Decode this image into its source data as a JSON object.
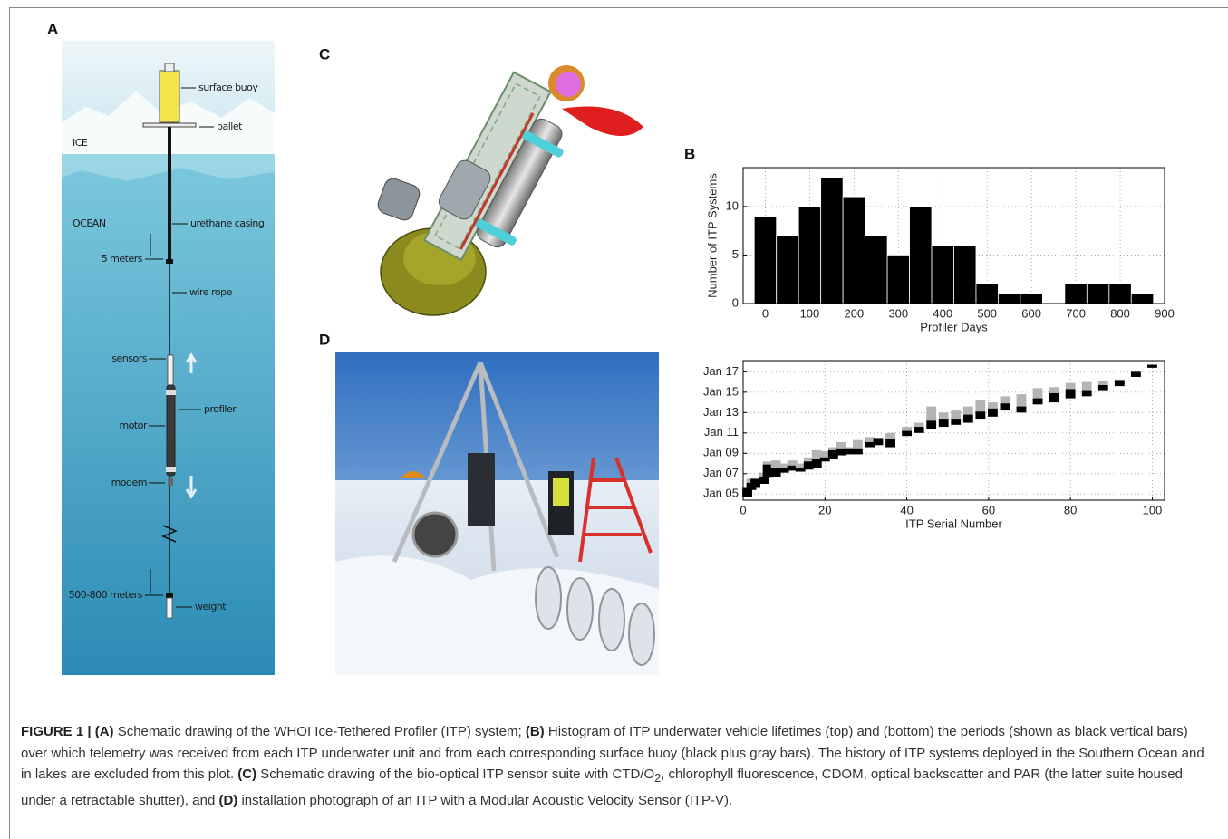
{
  "panel_labels": [
    "A",
    "B",
    "C",
    "D"
  ],
  "schematic_labels": [
    "surface buoy",
    "pallet",
    "ICE",
    "OCEAN",
    "urethane casing",
    "5 meters",
    "wire rope",
    "sensors",
    "profiler",
    "motor",
    "modem",
    "500-800 meters",
    "weight"
  ],
  "chart_data": [
    {
      "type": "histogram",
      "xlabel": "Profiler Days",
      "ylabel": "Number of ITP Systems",
      "bins": [
        -25,
        25,
        75,
        125,
        175,
        225,
        275,
        325,
        375,
        425,
        475,
        525,
        575,
        625,
        675,
        725,
        775,
        825,
        875
      ],
      "values": [
        9,
        7,
        10,
        13,
        11,
        7,
        5,
        10,
        6,
        6,
        2,
        1,
        1,
        0,
        2,
        2,
        2,
        1
      ],
      "color": "#000000",
      "xlim": [
        -50,
        900
      ],
      "xticks": [
        0,
        100,
        200,
        300,
        400,
        500,
        600,
        700,
        800,
        900
      ],
      "ylim": [
        0,
        14
      ],
      "yticks": [
        0,
        5,
        10
      ],
      "grid": true
    },
    {
      "type": "range",
      "xlabel": "ITP Serial Number",
      "x": [
        1,
        2,
        3,
        5,
        6,
        8,
        10,
        12,
        14,
        16,
        18,
        20,
        22,
        24,
        26,
        28,
        31,
        33,
        36,
        40,
        43,
        46,
        49,
        52,
        55,
        58,
        61,
        64,
        68,
        72,
        76,
        80,
        84,
        88,
        92,
        96,
        100
      ],
      "start": [
        2004.7,
        2005.4,
        2005.6,
        2006.0,
        2006.6,
        2006.7,
        2007.1,
        2007.3,
        2007.2,
        2007.4,
        2007.6,
        2008.2,
        2008.4,
        2008.8,
        2008.9,
        2008.9,
        2009.6,
        2009.8,
        2009.6,
        2010.7,
        2011.0,
        2011.4,
        2011.6,
        2011.8,
        2012.0,
        2012.4,
        2012.6,
        2013.2,
        2013.0,
        2013.8,
        2014.0,
        2014.4,
        2014.6,
        2015.2,
        2015.6,
        2016.5,
        2017.4
      ],
      "end": [
        2005.6,
        2006.1,
        2006.5,
        2006.7,
        2007.9,
        2007.6,
        2007.6,
        2007.8,
        2007.6,
        2008.2,
        2008.4,
        2008.6,
        2009.3,
        2009.4,
        2009.4,
        2009.4,
        2010.1,
        2010.5,
        2010.4,
        2011.2,
        2011.6,
        2012.2,
        2012.4,
        2012.4,
        2012.8,
        2013.1,
        2013.4,
        2013.9,
        2013.6,
        2014.4,
        2014.9,
        2015.3,
        2015.2,
        2015.7,
        2016.2,
        2017.0,
        2017.7
      ],
      "buoy_end": [
        2005.6,
        2006.5,
        2006.5,
        2007.1,
        2008.2,
        2008.3,
        2008.0,
        2008.3,
        2008.0,
        2008.6,
        2009.3,
        2009.2,
        2009.6,
        2010.1,
        2009.6,
        2010.3,
        2010.6,
        2010.5,
        2011.0,
        2011.6,
        2012.0,
        2013.6,
        2013.0,
        2013.2,
        2013.6,
        2014.2,
        2014.0,
        2014.6,
        2014.8,
        2015.4,
        2015.5,
        2015.9,
        2016.0,
        2016.1,
        2016.2,
        2017.0,
        2017.7
      ],
      "color": "#000000",
      "buoy_color": "#b4b4b4",
      "xlim": [
        0,
        103
      ],
      "xticks": [
        0,
        20,
        40,
        60,
        80,
        100
      ],
      "ylim": [
        2004.4,
        2018.1
      ],
      "yticks": [
        {
          "value": 2005,
          "label": "Jan 05"
        },
        {
          "value": 2007,
          "label": "Jan 07"
        },
        {
          "value": 2009,
          "label": "Jan 09"
        },
        {
          "value": 2011,
          "label": "Jan 11"
        },
        {
          "value": 2013,
          "label": "Jan 13"
        },
        {
          "value": 2015,
          "label": "Jan 15"
        },
        {
          "value": 2017,
          "label": "Jan 17"
        }
      ],
      "grid": true
    }
  ],
  "caption": [
    "FIGURE 1 | (A)",
    " Schematic drawing of the WHOI Ice-Tethered Profiler (ITP) system; ",
    "(B)",
    " Histogram of ITP underwater vehicle lifetimes (top) and (bottom) the periods (shown as black vertical bars) over which telemetry was received from each ITP underwater unit and from each corresponding surface buoy (black plus gray bars). The history of ITP systems deployed in the Southern Ocean and in lakes are excluded from this plot. ",
    "(C)",
    " Schematic drawing of the bio-optical ITP sensor suite with CTD/O",
    "2",
    ", chlorophyll fluorescence, CDOM, optical backscatter and PAR (the latter suite housed under a retractable shutter), and ",
    "(D)",
    " installation photograph of an ITP with a Modular Acoustic Velocity Sensor (ITP-V)."
  ]
}
